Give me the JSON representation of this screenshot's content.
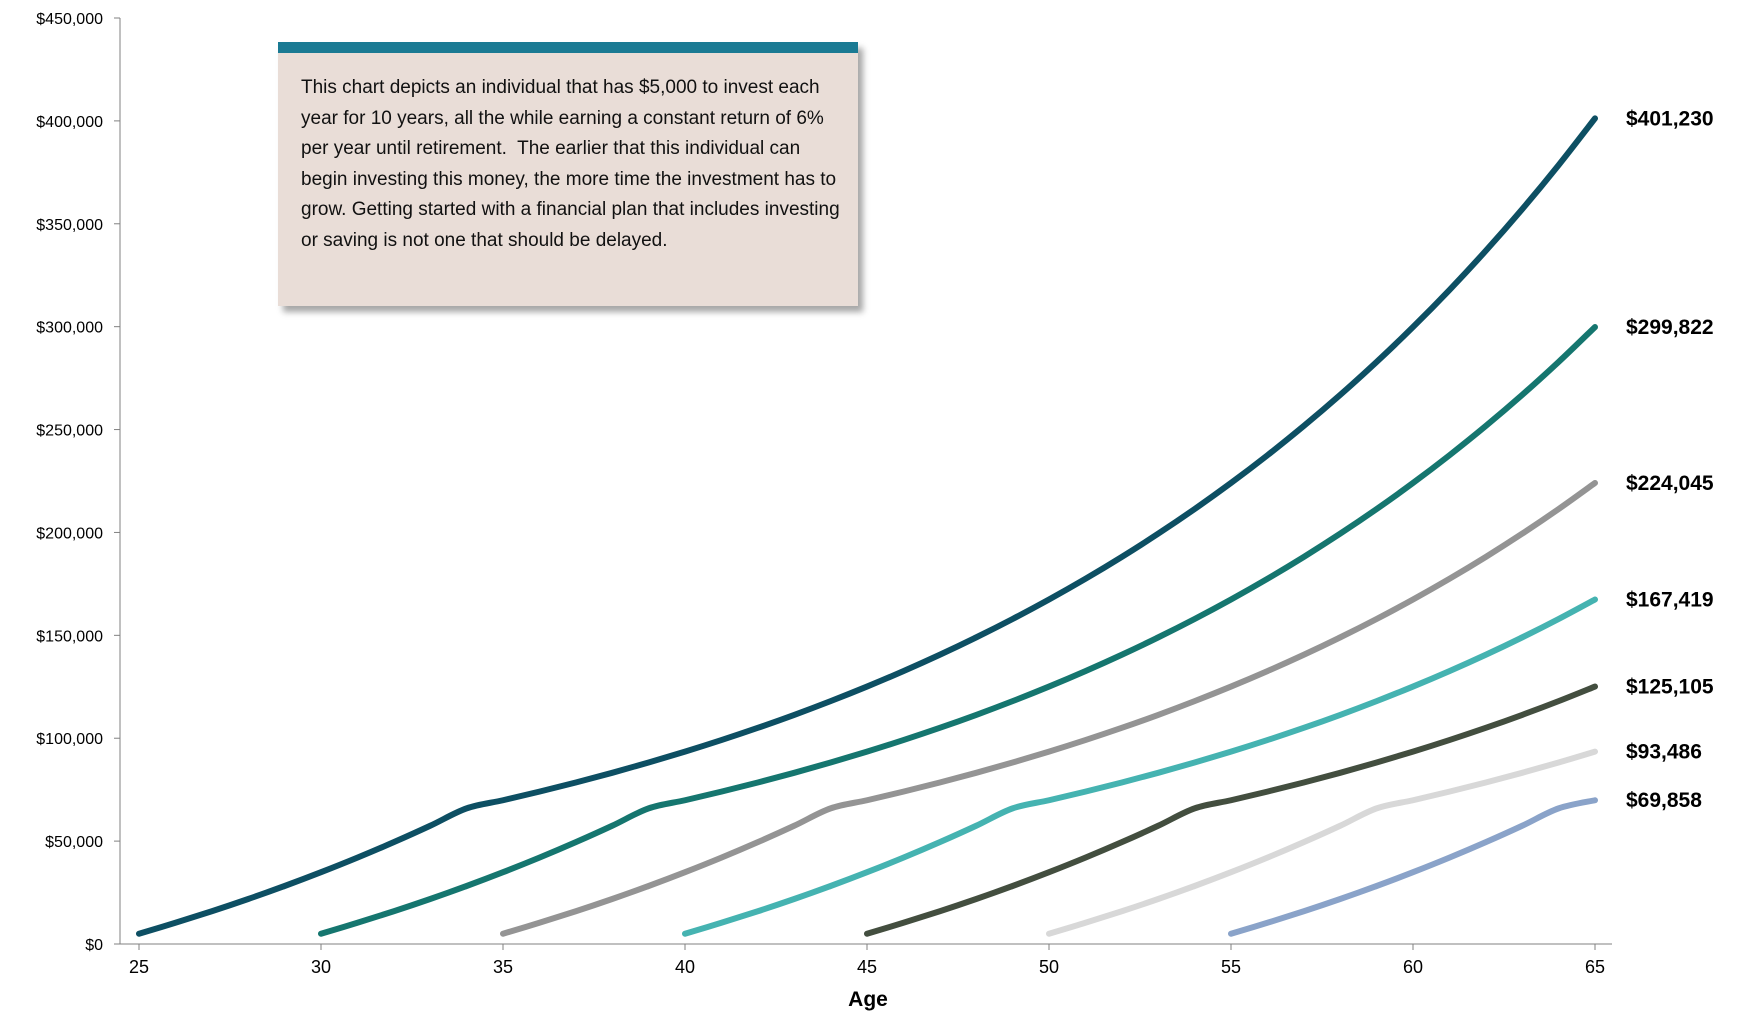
{
  "chart_data": {
    "type": "line",
    "xlabel": "Age",
    "ylabel": "",
    "xlim": [
      25,
      65
    ],
    "ylim": [
      0,
      450000
    ],
    "x_ticks": [
      "25",
      "30",
      "35",
      "40",
      "45",
      "50",
      "55",
      "60",
      "65"
    ],
    "y_ticks": [
      "$0",
      "$50,000",
      "$100,000",
      "$150,000",
      "$200,000",
      "$250,000",
      "$300,000",
      "$350,000",
      "$400,000",
      "$450,000"
    ],
    "annotation": "This chart depicts an individual that has $5,000 to invest each year for 10 years, all the while earning a constant return of 6% per year until retirement.  The earlier that this individual can begin investing this money, the more time the investment has to grow. Getting started with a financial plan that includes investing or saving is not one that should be delayed.",
    "series": [
      {
        "start_age": 25,
        "end_label": "$401,230",
        "color": "#0d4f63",
        "x": [
          25,
          26,
          27,
          28,
          29,
          30,
          31,
          32,
          33,
          34,
          35,
          36,
          37,
          38,
          39,
          40,
          41,
          42,
          43,
          44,
          45,
          46,
          47,
          48,
          49,
          50,
          51,
          52,
          53,
          54,
          55,
          56,
          57,
          58,
          59,
          60,
          61,
          62,
          63,
          64,
          65
        ],
        "values": [
          5000,
          10300,
          15918,
          21873,
          28185,
          34877,
          41969,
          49488,
          57455,
          65900,
          69858,
          74050,
          78493,
          83203,
          88195,
          93487,
          99096,
          105042,
          111344,
          118025,
          125106,
          132612,
          140569,
          149003,
          157943,
          167420,
          177465,
          188113,
          199400,
          211364,
          224045,
          237488,
          251738,
          266842,
          282852,
          299823,
          317813,
          336881,
          357094,
          378519,
          401230
        ]
      },
      {
        "start_age": 30,
        "end_label": "$299,822",
        "color": "#15766f",
        "x": [
          30,
          31,
          32,
          33,
          34,
          35,
          36,
          37,
          38,
          39,
          40,
          41,
          42,
          43,
          44,
          45,
          46,
          47,
          48,
          49,
          50,
          51,
          52,
          53,
          54,
          55,
          56,
          57,
          58,
          59,
          60,
          61,
          62,
          63,
          64,
          65
        ],
        "values": [
          5000,
          10300,
          15918,
          21873,
          28185,
          34877,
          41969,
          49488,
          57455,
          65900,
          69858,
          74050,
          78493,
          83203,
          88195,
          93487,
          99096,
          105042,
          111344,
          118025,
          125106,
          132612,
          140569,
          149003,
          157943,
          167420,
          177465,
          188113,
          199400,
          211364,
          224045,
          237488,
          251738,
          266842,
          282852,
          299822
        ]
      },
      {
        "start_age": 35,
        "end_label": "$224,045",
        "color": "#949494",
        "x": [
          35,
          36,
          37,
          38,
          39,
          40,
          41,
          42,
          43,
          44,
          45,
          46,
          47,
          48,
          49,
          50,
          51,
          52,
          53,
          54,
          55,
          56,
          57,
          58,
          59,
          60,
          61,
          62,
          63,
          64,
          65
        ],
        "values": [
          5000,
          10300,
          15918,
          21873,
          28185,
          34877,
          41969,
          49488,
          57455,
          65900,
          69858,
          74050,
          78493,
          83203,
          88195,
          93487,
          99096,
          105042,
          111344,
          118025,
          125106,
          132612,
          140569,
          149003,
          157943,
          167420,
          177465,
          188113,
          199400,
          211364,
          224045
        ]
      },
      {
        "start_age": 40,
        "end_label": "$167,419",
        "color": "#45b3b1",
        "x": [
          40,
          41,
          42,
          43,
          44,
          45,
          46,
          47,
          48,
          49,
          50,
          51,
          52,
          53,
          54,
          55,
          56,
          57,
          58,
          59,
          60,
          61,
          62,
          63,
          64,
          65
        ],
        "values": [
          5000,
          10300,
          15918,
          21873,
          28185,
          34877,
          41969,
          49488,
          57455,
          65900,
          69858,
          74050,
          78493,
          83203,
          88195,
          93487,
          99096,
          105042,
          111344,
          118025,
          125106,
          132612,
          140569,
          149003,
          157943,
          167419
        ]
      },
      {
        "start_age": 45,
        "end_label": "$125,105",
        "color": "#434e3f",
        "x": [
          45,
          46,
          47,
          48,
          49,
          50,
          51,
          52,
          53,
          54,
          55,
          56,
          57,
          58,
          59,
          60,
          61,
          62,
          63,
          64,
          65
        ],
        "values": [
          5000,
          10300,
          15918,
          21873,
          28185,
          34877,
          41969,
          49488,
          57455,
          65900,
          69858,
          74050,
          78493,
          83203,
          88195,
          93487,
          99096,
          105042,
          111344,
          118025,
          125105
        ]
      },
      {
        "start_age": 50,
        "end_label": "$93,486",
        "color": "#d8d8d8",
        "x": [
          50,
          51,
          52,
          53,
          54,
          55,
          56,
          57,
          58,
          59,
          60,
          61,
          62,
          63,
          64,
          65
        ],
        "values": [
          5000,
          10300,
          15918,
          21873,
          28185,
          34877,
          41969,
          49488,
          57455,
          65900,
          69858,
          74050,
          78493,
          83203,
          88195,
          93486
        ]
      },
      {
        "start_age": 55,
        "end_label": "$69,858",
        "color": "#8aa3c9",
        "x": [
          55,
          56,
          57,
          58,
          59,
          60,
          61,
          62,
          63,
          64,
          65
        ],
        "values": [
          5000,
          10300,
          15918,
          21873,
          28185,
          34877,
          41969,
          49488,
          57455,
          65900,
          69858
        ]
      }
    ]
  }
}
